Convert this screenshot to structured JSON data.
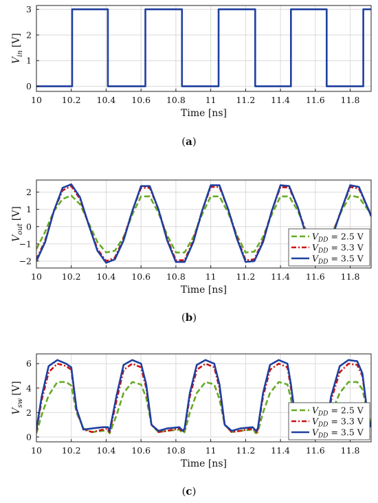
{
  "colors": {
    "vdd_2_5": "#66aa22",
    "vdd_3_3": "#cc1111",
    "vdd_3_5": "#1f3f9f",
    "vin": "#1f3f9f",
    "grid": "#d9d9d9",
    "axis": "#222222"
  },
  "chart_data": [
    {
      "id": "a",
      "type": "line",
      "caption": "(a)",
      "caption_letter": "a",
      "xlabel": "Time [ns]",
      "ylabel": "V",
      "ylabel_sub": "in",
      "ylabel_unit": "[V]",
      "xlim": [
        10,
        11.92
      ],
      "ylim": [
        -0.2,
        3.15
      ],
      "xticks": [
        10,
        10.2,
        10.4,
        10.6,
        10.8,
        11,
        11.2,
        11.4,
        11.6,
        11.8
      ],
      "xtick_labels": [
        "10",
        "10.2",
        "10.4",
        "10.6",
        "10.8",
        "11",
        "11.2",
        "11.4",
        "11.6",
        "11.8"
      ],
      "yticks": [
        0,
        1,
        2,
        3
      ],
      "ytick_labels": [
        "0",
        "1",
        "2",
        "3"
      ],
      "grid": true,
      "legend": null,
      "series": [
        {
          "key": "vin",
          "style": "solid",
          "x": [
            10.0,
            10.205,
            10.205,
            10.41,
            10.41,
            10.625,
            10.625,
            10.835,
            10.835,
            11.045,
            11.045,
            11.255,
            11.255,
            11.46,
            11.46,
            11.665,
            11.665,
            11.875,
            11.875,
            11.92
          ],
          "y": [
            0,
            0,
            3,
            3,
            0,
            0,
            3,
            3,
            0,
            0,
            3,
            3,
            0,
            0,
            3,
            3,
            0,
            0,
            3,
            3
          ]
        }
      ]
    },
    {
      "id": "b",
      "type": "line",
      "caption": "(b)",
      "caption_letter": "b",
      "xlabel": "Time [ns]",
      "ylabel": "V",
      "ylabel_sub": "out",
      "ylabel_unit": "[V]",
      "xlim": [
        10,
        11.92
      ],
      "ylim": [
        -2.4,
        2.7
      ],
      "xticks": [
        10,
        10.2,
        10.4,
        10.6,
        10.8,
        11,
        11.2,
        11.4,
        11.6,
        11.8
      ],
      "xtick_labels": [
        "10",
        "10.2",
        "10.4",
        "10.6",
        "10.8",
        "11",
        "11.2",
        "11.4",
        "11.6",
        "11.8"
      ],
      "yticks": [
        -2,
        -1,
        0,
        1,
        2
      ],
      "ytick_labels": [
        "−2",
        "−1",
        "0",
        "1",
        "2"
      ],
      "grid": true,
      "legend": "bottom-right",
      "series": [
        {
          "key": "vdd_2_5",
          "name": "V",
          "name_sub": "DD",
          "name_rest": " = 2.5 V",
          "style": "dashed",
          "x": [
            10.0,
            10.05,
            10.1,
            10.15,
            10.2,
            10.25,
            10.3,
            10.35,
            10.4,
            10.45,
            10.5,
            10.55,
            10.6,
            10.65,
            10.7,
            10.75,
            10.8,
            10.85,
            10.9,
            10.95,
            11.0,
            11.05,
            11.1,
            11.15,
            11.2,
            11.25,
            11.3,
            11.35,
            11.4,
            11.45,
            11.5,
            11.55,
            11.6,
            11.65,
            11.7,
            11.75,
            11.8,
            11.85,
            11.9,
            11.92
          ],
          "y": [
            -1.3,
            -0.3,
            0.9,
            1.6,
            1.8,
            1.3,
            0.2,
            -0.9,
            -1.5,
            -1.4,
            -0.6,
            0.7,
            1.75,
            1.75,
            0.8,
            -0.5,
            -1.5,
            -1.5,
            -0.6,
            0.7,
            1.75,
            1.75,
            0.8,
            -0.5,
            -1.5,
            -1.45,
            -0.6,
            0.7,
            1.75,
            1.75,
            0.9,
            -0.3,
            -1.45,
            -1.3,
            -0.3,
            0.9,
            1.8,
            1.7,
            1.0,
            0.7
          ]
        },
        {
          "key": "vdd_3_3",
          "name": "V",
          "name_sub": "DD",
          "name_rest": " = 3.3 V",
          "style": "dashdot",
          "x": [
            10.0,
            10.05,
            10.1,
            10.15,
            10.2,
            10.25,
            10.3,
            10.35,
            10.4,
            10.45,
            10.5,
            10.55,
            10.6,
            10.65,
            10.7,
            10.75,
            10.8,
            10.85,
            10.9,
            10.95,
            11.0,
            11.05,
            11.1,
            11.15,
            11.2,
            11.25,
            11.3,
            11.35,
            11.4,
            11.45,
            11.5,
            11.55,
            11.6,
            11.65,
            11.7,
            11.75,
            11.8,
            11.85,
            11.9,
            11.92
          ],
          "y": [
            -1.9,
            -0.8,
            0.9,
            2.1,
            2.35,
            1.6,
            0.1,
            -1.3,
            -2.0,
            -1.8,
            -0.7,
            0.9,
            2.25,
            2.25,
            1.0,
            -0.7,
            -1.95,
            -1.95,
            -0.8,
            0.9,
            2.3,
            2.3,
            1.0,
            -0.6,
            -1.95,
            -1.9,
            -0.8,
            0.9,
            2.3,
            2.25,
            1.1,
            -0.5,
            -1.9,
            -1.7,
            -0.4,
            1.0,
            2.3,
            2.2,
            1.1,
            0.7
          ]
        },
        {
          "key": "vdd_3_5",
          "name": "V",
          "name_sub": "DD",
          "name_rest": " = 3.5 V",
          "style": "solid",
          "x": [
            10.0,
            10.05,
            10.1,
            10.15,
            10.2,
            10.25,
            10.3,
            10.35,
            10.4,
            10.45,
            10.5,
            10.55,
            10.6,
            10.65,
            10.7,
            10.75,
            10.8,
            10.85,
            10.9,
            10.95,
            11.0,
            11.05,
            11.1,
            11.15,
            11.2,
            11.25,
            11.3,
            11.35,
            11.4,
            11.45,
            11.5,
            11.55,
            11.6,
            11.65,
            11.7,
            11.75,
            11.8,
            11.85,
            11.9,
            11.92
          ],
          "y": [
            -2.0,
            -0.9,
            0.9,
            2.25,
            2.45,
            1.7,
            0.1,
            -1.4,
            -2.1,
            -1.9,
            -0.8,
            0.9,
            2.35,
            2.35,
            1.0,
            -0.8,
            -2.05,
            -2.05,
            -0.9,
            0.9,
            2.4,
            2.4,
            1.0,
            -0.7,
            -2.05,
            -2.0,
            -0.9,
            0.9,
            2.4,
            2.35,
            1.1,
            -0.6,
            -2.0,
            -1.8,
            -0.5,
            1.0,
            2.4,
            2.3,
            1.1,
            0.6
          ]
        }
      ]
    },
    {
      "id": "c",
      "type": "line",
      "caption": "(c)",
      "caption_letter": "c",
      "xlabel": "Time [ns]",
      "ylabel": "V",
      "ylabel_sub": "sw",
      "ylabel_unit": "[V]",
      "xlim": [
        10,
        11.92
      ],
      "ylim": [
        -0.4,
        6.8
      ],
      "xticks": [
        10,
        10.2,
        10.4,
        10.6,
        10.8,
        11,
        11.2,
        11.4,
        11.6,
        11.8
      ],
      "xtick_labels": [
        "10",
        "10.2",
        "10.4",
        "10.6",
        "10.8",
        "11",
        "11.2",
        "11.4",
        "11.6",
        "11.8"
      ],
      "yticks": [
        0,
        2,
        4,
        6
      ],
      "ytick_labels": [
        "0",
        "2",
        "4",
        "6"
      ],
      "grid": true,
      "legend": "bottom-right",
      "series": [
        {
          "key": "vdd_2_5",
          "name": "V",
          "name_sub": "DD",
          "name_rest": " = 2.5 V",
          "style": "dashed",
          "x": [
            10.0,
            10.03,
            10.07,
            10.12,
            10.17,
            10.2,
            10.23,
            10.27,
            10.32,
            10.38,
            10.41,
            10.42,
            10.46,
            10.5,
            10.55,
            10.6,
            10.63,
            10.66,
            10.7,
            10.75,
            10.82,
            10.84,
            10.85,
            10.88,
            10.92,
            10.97,
            11.02,
            11.05,
            11.08,
            11.12,
            11.17,
            11.24,
            11.26,
            11.27,
            11.3,
            11.34,
            11.39,
            11.44,
            11.46,
            11.49,
            11.53,
            11.57,
            11.63,
            11.66,
            11.69,
            11.74,
            11.79,
            11.84,
            11.87,
            11.9,
            11.92
          ],
          "y": [
            0.3,
            1.8,
            3.4,
            4.5,
            4.5,
            4.2,
            2.0,
            0.7,
            0.4,
            0.5,
            0.5,
            0.3,
            1.8,
            3.6,
            4.5,
            4.3,
            3.2,
            1.0,
            0.4,
            0.5,
            0.6,
            0.3,
            0.4,
            2.0,
            3.6,
            4.5,
            4.3,
            3.1,
            1.0,
            0.4,
            0.5,
            0.6,
            0.3,
            0.4,
            2.0,
            3.6,
            4.5,
            4.3,
            3.1,
            1.0,
            0.4,
            0.5,
            0.6,
            0.3,
            1.9,
            3.6,
            4.5,
            4.5,
            3.9,
            2.0,
            1.0
          ]
        },
        {
          "key": "vdd_3_3",
          "name": "V",
          "name_sub": "DD",
          "name_rest": " = 3.3 V",
          "style": "dashdot",
          "x": [
            10.0,
            10.03,
            10.07,
            10.12,
            10.17,
            10.2,
            10.23,
            10.27,
            10.32,
            10.38,
            10.41,
            10.42,
            10.46,
            10.5,
            10.55,
            10.6,
            10.63,
            10.66,
            10.7,
            10.75,
            10.82,
            10.84,
            10.85,
            10.88,
            10.92,
            10.97,
            11.02,
            11.05,
            11.08,
            11.12,
            11.17,
            11.24,
            11.26,
            11.27,
            11.3,
            11.34,
            11.39,
            11.44,
            11.46,
            11.49,
            11.53,
            11.57,
            11.63,
            11.66,
            11.69,
            11.74,
            11.79,
            11.84,
            11.87,
            11.9,
            11.92
          ],
          "y": [
            0.5,
            3.0,
            5.3,
            6.0,
            5.8,
            5.5,
            2.2,
            0.6,
            0.4,
            0.6,
            0.7,
            0.4,
            3.0,
            5.5,
            6.0,
            5.7,
            4.0,
            1.0,
            0.4,
            0.5,
            0.7,
            0.4,
            0.6,
            3.3,
            5.5,
            6.0,
            5.7,
            4.0,
            1.0,
            0.4,
            0.5,
            0.7,
            0.4,
            0.6,
            3.3,
            5.5,
            6.0,
            5.7,
            4.0,
            1.0,
            0.4,
            0.5,
            0.7,
            0.4,
            3.0,
            5.3,
            6.0,
            5.9,
            5.0,
            1.8,
            0.8
          ]
        },
        {
          "key": "vdd_3_5",
          "name": "V",
          "name_sub": "DD",
          "name_rest": " = 3.5 V",
          "style": "solid",
          "x": [
            10.0,
            10.03,
            10.07,
            10.12,
            10.17,
            10.2,
            10.23,
            10.27,
            10.32,
            10.38,
            10.41,
            10.42,
            10.46,
            10.5,
            10.55,
            10.6,
            10.63,
            10.66,
            10.7,
            10.75,
            10.82,
            10.84,
            10.85,
            10.88,
            10.92,
            10.97,
            11.02,
            11.05,
            11.08,
            11.12,
            11.17,
            11.24,
            11.26,
            11.27,
            11.3,
            11.34,
            11.39,
            11.44,
            11.46,
            11.49,
            11.53,
            11.57,
            11.63,
            11.66,
            11.69,
            11.74,
            11.79,
            11.84,
            11.87,
            11.9,
            11.92
          ],
          "y": [
            0.6,
            3.3,
            5.8,
            6.3,
            6.0,
            5.7,
            2.3,
            0.6,
            0.7,
            0.8,
            0.8,
            0.5,
            3.4,
            5.9,
            6.3,
            6.0,
            4.3,
            1.0,
            0.5,
            0.7,
            0.8,
            0.5,
            0.7,
            3.6,
            5.9,
            6.3,
            6.0,
            4.3,
            1.0,
            0.5,
            0.7,
            0.8,
            0.5,
            0.7,
            3.6,
            5.9,
            6.3,
            6.0,
            4.3,
            1.0,
            0.5,
            0.7,
            0.8,
            0.5,
            3.3,
            5.8,
            6.3,
            6.2,
            5.2,
            1.8,
            0.8
          ]
        }
      ]
    }
  ]
}
